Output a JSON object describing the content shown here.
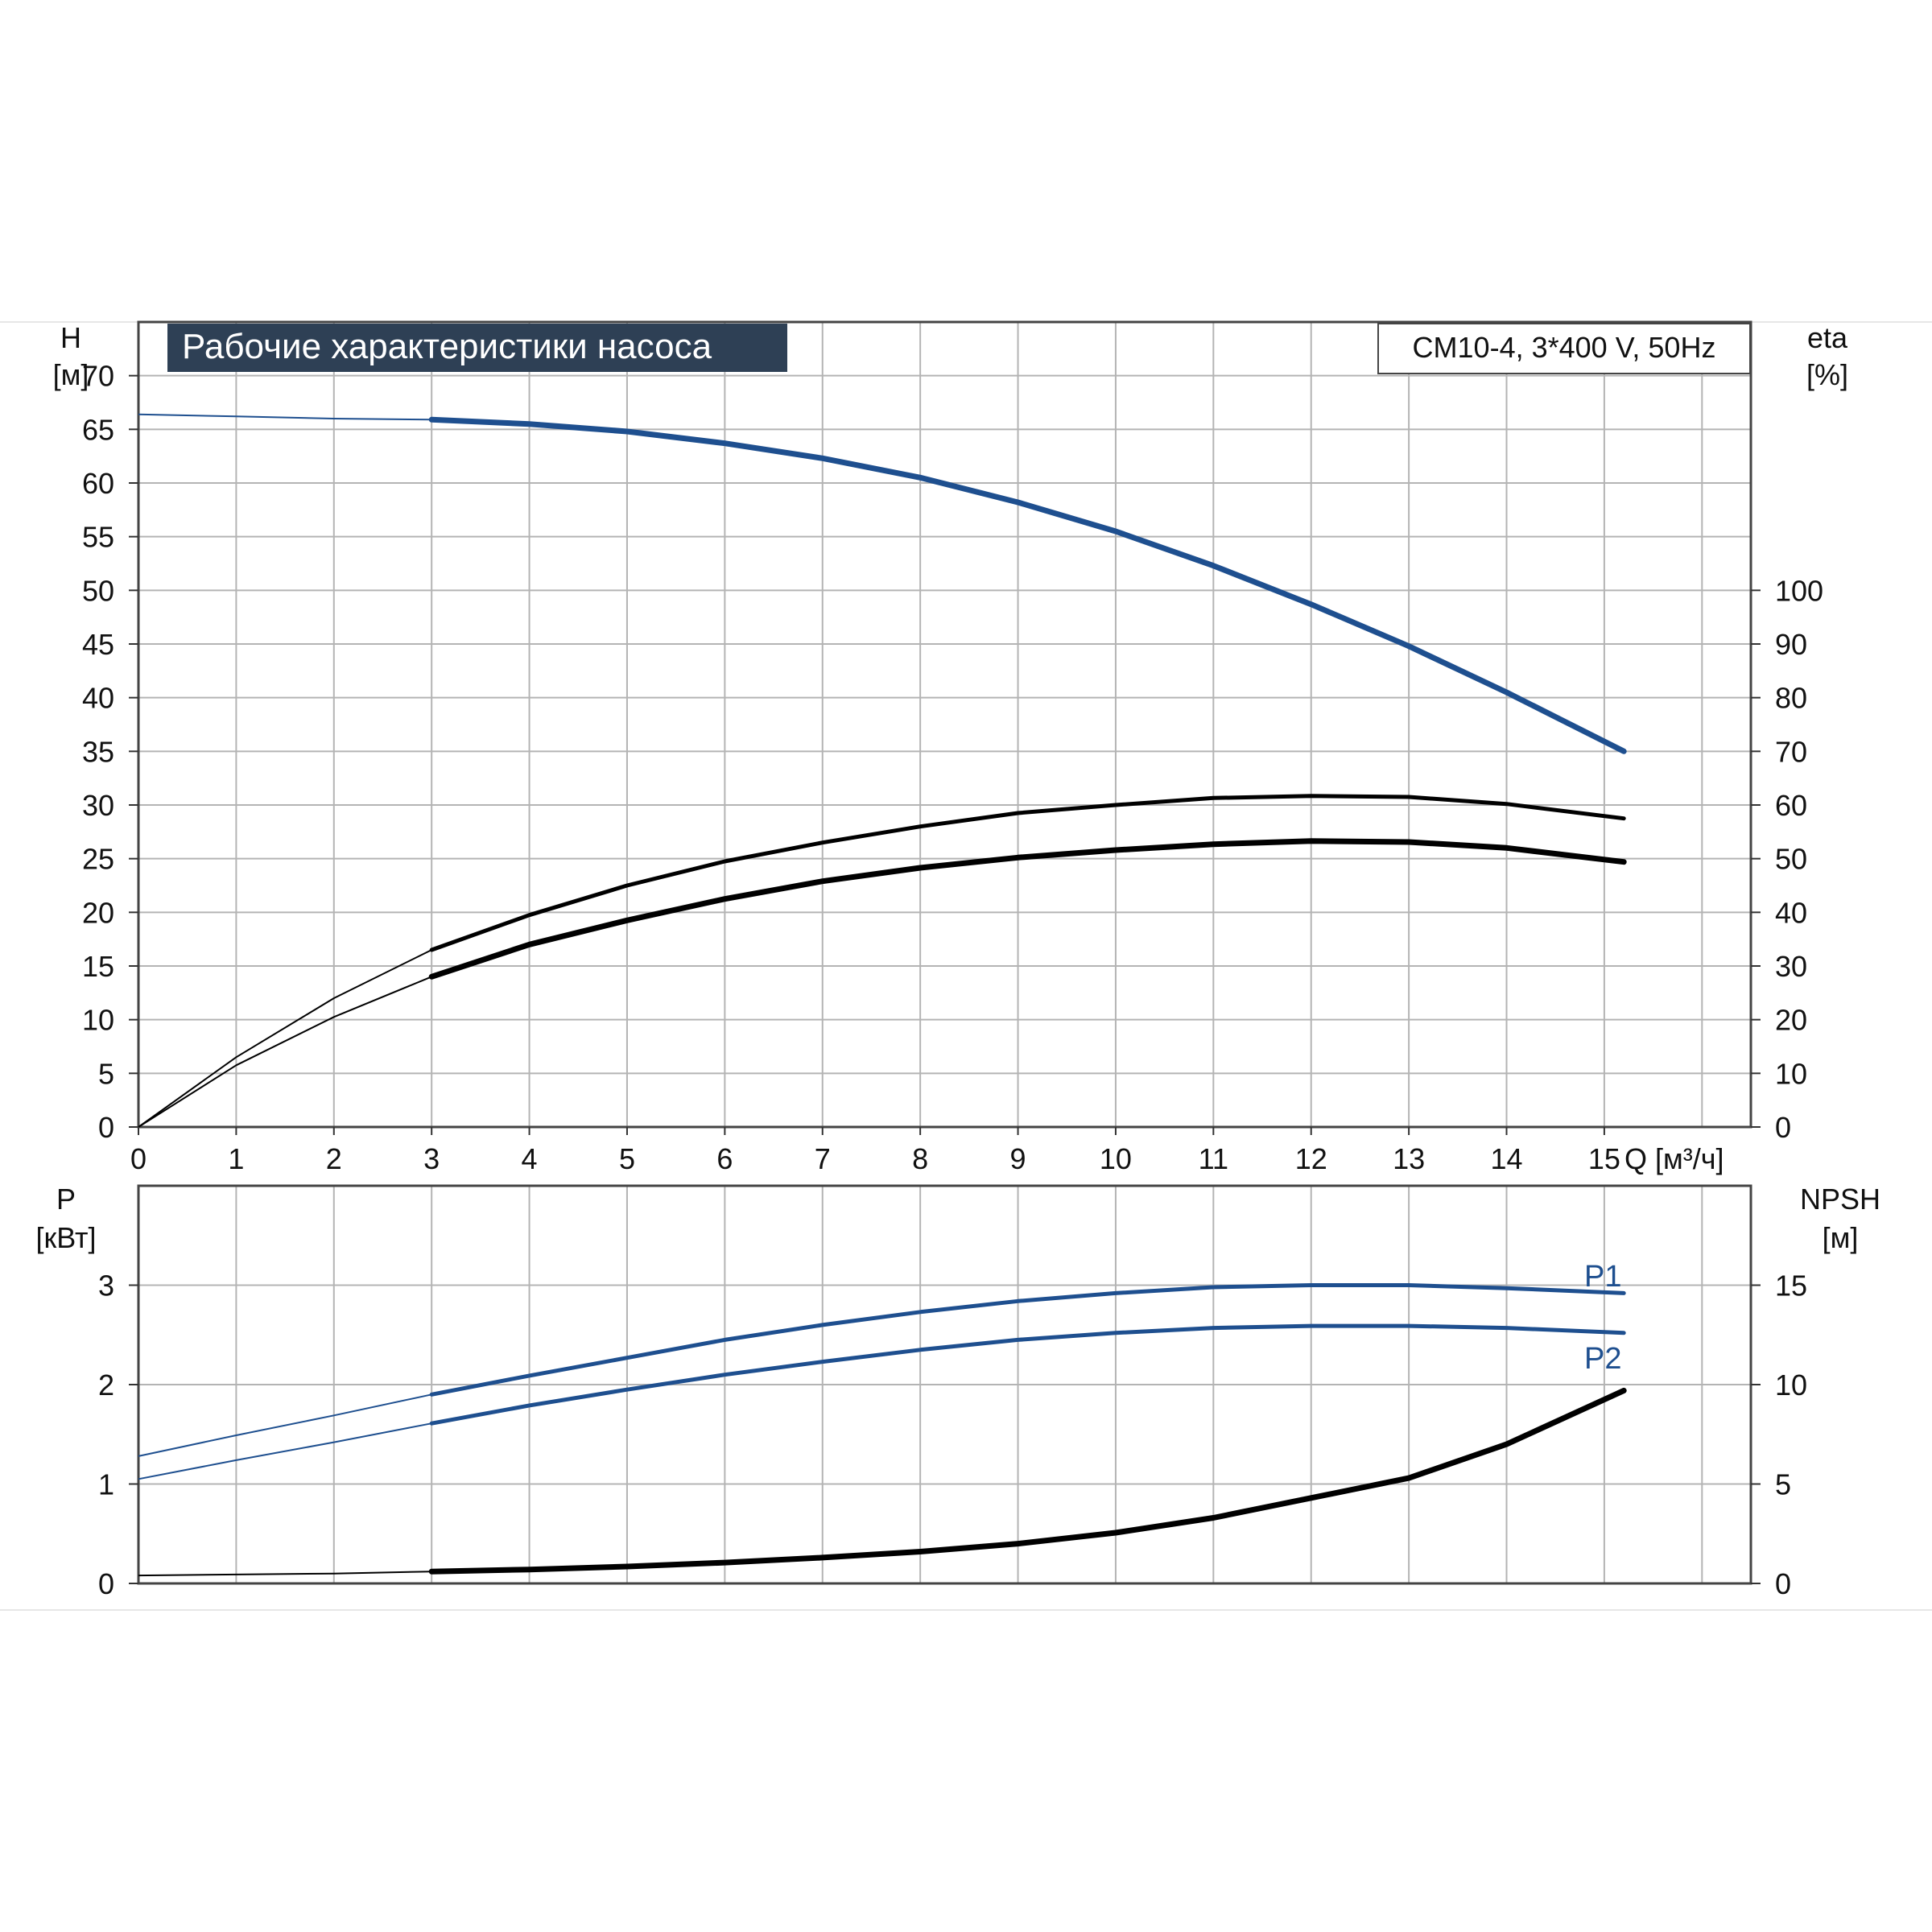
{
  "title": "Рабочие характеристики насоса",
  "model": "CM10-4, 3*400 V, 50Hz",
  "colors": {
    "blue": "#1e4f8f",
    "black": "#000000",
    "grid": "#b4b4b4",
    "title_bg": "#2e4055"
  },
  "chart_data": [
    {
      "type": "line",
      "xlabel": "Q [м³/ч]",
      "xlim": [
        0,
        16.5
      ],
      "xticks": [
        "0",
        "1",
        "2",
        "3",
        "4",
        "5",
        "6",
        "7",
        "8",
        "9",
        "10",
        "11",
        "12",
        "13",
        "14",
        "15"
      ],
      "left_axis": {
        "name": "H",
        "unit": "[м]",
        "ylim": [
          0,
          75
        ],
        "ticks": [
          "0",
          "5",
          "10",
          "15",
          "20",
          "25",
          "30",
          "35",
          "40",
          "45",
          "50",
          "55",
          "60",
          "65",
          "70"
        ]
      },
      "right_axis": {
        "name": "eta",
        "unit": "[%]",
        "ylim": [
          0,
          150
        ],
        "ticks": [
          "0",
          "10",
          "20",
          "30",
          "40",
          "50",
          "60",
          "70",
          "80",
          "90",
          "100"
        ]
      },
      "grid": true,
      "series": [
        {
          "key": "H",
          "color": "blue",
          "axis": "left",
          "x": [
            0,
            1,
            2,
            3,
            4,
            5,
            6,
            7,
            8,
            9,
            10,
            11,
            12,
            13,
            14,
            15.2
          ],
          "y": [
            66.4,
            66.2,
            66.0,
            65.9,
            65.5,
            64.8,
            63.7,
            62.3,
            60.5,
            58.2,
            55.5,
            52.3,
            48.7,
            44.8,
            40.5,
            35.0
          ]
        },
        {
          "key": "eta_upper",
          "color": "black",
          "axis": "right",
          "x": [
            0,
            1,
            2,
            3,
            4,
            5,
            6,
            7,
            8,
            9,
            10,
            11,
            12,
            13,
            14,
            15.2
          ],
          "y": [
            0,
            13,
            24,
            33,
            39.5,
            45,
            49.5,
            53,
            56,
            58.5,
            60,
            61.3,
            61.7,
            61.5,
            60.2,
            57.5
          ]
        },
        {
          "key": "eta_lower",
          "color": "black",
          "axis": "right",
          "x": [
            0,
            1,
            2,
            3,
            4,
            5,
            6,
            7,
            8,
            9,
            10,
            11,
            12,
            13,
            14,
            15.2
          ],
          "y": [
            0,
            11.5,
            20.5,
            28,
            34,
            38.5,
            42.5,
            45.8,
            48.3,
            50.2,
            51.6,
            52.7,
            53.3,
            53.1,
            52,
            49.4
          ]
        }
      ]
    },
    {
      "type": "line",
      "xlim": [
        0,
        16.5
      ],
      "left_axis": {
        "name": "P",
        "unit": "[кВт]",
        "ylim": [
          0,
          4
        ],
        "ticks": [
          "0",
          "1",
          "2",
          "3"
        ]
      },
      "right_axis": {
        "name": "NPSH",
        "unit": "[м]",
        "ylim": [
          0,
          20
        ],
        "ticks": [
          "0",
          "5",
          "10",
          "15"
        ]
      },
      "grid": true,
      "series": [
        {
          "name": "P1",
          "key": "P1",
          "color": "blue",
          "axis": "left",
          "x": [
            0,
            1,
            2,
            3,
            4,
            5,
            6,
            7,
            8,
            9,
            10,
            11,
            12,
            13,
            14,
            15.2
          ],
          "y": [
            1.28,
            1.49,
            1.69,
            1.9,
            2.09,
            2.27,
            2.45,
            2.6,
            2.73,
            2.84,
            2.92,
            2.98,
            3.0,
            3.0,
            2.97,
            2.92
          ]
        },
        {
          "name": "P2",
          "key": "P2",
          "color": "blue",
          "axis": "left",
          "x": [
            0,
            1,
            2,
            3,
            4,
            5,
            6,
            7,
            8,
            9,
            10,
            11,
            12,
            13,
            14,
            15.2
          ],
          "y": [
            1.05,
            1.24,
            1.42,
            1.61,
            1.79,
            1.95,
            2.1,
            2.23,
            2.35,
            2.45,
            2.52,
            2.57,
            2.59,
            2.59,
            2.57,
            2.52
          ]
        },
        {
          "key": "NPSH",
          "color": "black",
          "axis": "right",
          "x": [
            0,
            1,
            2,
            3,
            4,
            5,
            6,
            7,
            8,
            9,
            10,
            11,
            12,
            13,
            14,
            15.2
          ],
          "y": [
            0.4,
            0.45,
            0.5,
            0.6,
            0.7,
            0.85,
            1.05,
            1.3,
            1.6,
            2.0,
            2.55,
            3.3,
            4.3,
            5.3,
            7.0,
            9.7
          ]
        }
      ]
    }
  ]
}
